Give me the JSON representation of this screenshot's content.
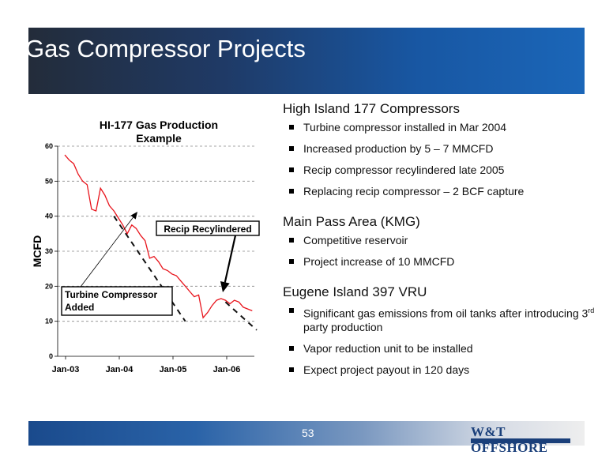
{
  "slide": {
    "title": "Gas Compressor Projects",
    "page_number": "53",
    "logo_text": "W&T OFFSHORE"
  },
  "bullets": [
    {
      "heading": "High Island 177 Compressors",
      "items": [
        "Turbine compressor installed in Mar 2004",
        "Increased production by 5 – 7 MMCFD",
        "Recip compressor recylindered late 2005",
        "Replacing recip compressor – 2 BCF capture"
      ]
    },
    {
      "heading": "Main Pass Area (KMG)",
      "items": [
        "Competitive reservoir",
        "Project increase of 10 MMCFD"
      ]
    },
    {
      "heading": "Eugene Island 397 VRU",
      "items": [
        "Significant gas emissions from oil tanks after introducing 3rd party production",
        "Vapor reduction unit to be installed",
        "Expect project payout in 120 days"
      ]
    }
  ],
  "chart_data": {
    "type": "line",
    "title": [
      "HI-177 Gas Production",
      "Example"
    ],
    "ylabel": "MCFD",
    "xlabel": "",
    "ylim": [
      0,
      60
    ],
    "yticks": [
      0,
      10,
      20,
      30,
      40,
      50,
      60
    ],
    "xticks": [
      "Jan-03",
      "Jan-04",
      "Jan-05",
      "Jan-06"
    ],
    "grid": "horizontal-dashed",
    "series": [
      {
        "color": "#e8141c",
        "style": "solid",
        "x": [
          "2003-01",
          "2003-02",
          "2003-03",
          "2003-04",
          "2003-05",
          "2003-06",
          "2003-07",
          "2003-08",
          "2003-09",
          "2003-10",
          "2003-11",
          "2003-12",
          "2004-01",
          "2004-02",
          "2004-03",
          "2004-04",
          "2004-05",
          "2004-06",
          "2004-07",
          "2004-08",
          "2004-09",
          "2004-10",
          "2004-11",
          "2004-12",
          "2005-01",
          "2005-02",
          "2005-03",
          "2005-04",
          "2005-05",
          "2005-06",
          "2005-07",
          "2005-08",
          "2005-09",
          "2005-10",
          "2005-11",
          "2005-12",
          "2006-01",
          "2006-02",
          "2006-03",
          "2006-04",
          "2006-05",
          "2006-06",
          "2006-07"
        ],
        "values": [
          57.5,
          56,
          55,
          52,
          50,
          49,
          42,
          41.5,
          48,
          46,
          43,
          41.5,
          39.5,
          37.5,
          35,
          37.5,
          36.5,
          34.5,
          33,
          28,
          28.5,
          27,
          25,
          24.5,
          23.5,
          23,
          21.5,
          20,
          18.5,
          17,
          17.5,
          11,
          12.5,
          14.5,
          16,
          16.5,
          16,
          15,
          16,
          15.5,
          14,
          13.5,
          13
        ]
      },
      {
        "color": "#111111",
        "style": "dashed",
        "x": [
          "2003-12",
          "2005-04"
        ],
        "values": [
          40,
          10
        ]
      },
      {
        "color": "#111111",
        "style": "dashed",
        "x": [
          "2006-01",
          "2006-08"
        ],
        "values": [
          15.5,
          7.5
        ]
      }
    ],
    "annotations": [
      {
        "text": [
          "Turbine Compressor",
          "Added"
        ],
        "arrow_to": [
          "2004-01",
          37
        ]
      },
      {
        "text": [
          "Recip Recylindered"
        ],
        "arrow_to": [
          "2005-12",
          15
        ]
      }
    ]
  }
}
